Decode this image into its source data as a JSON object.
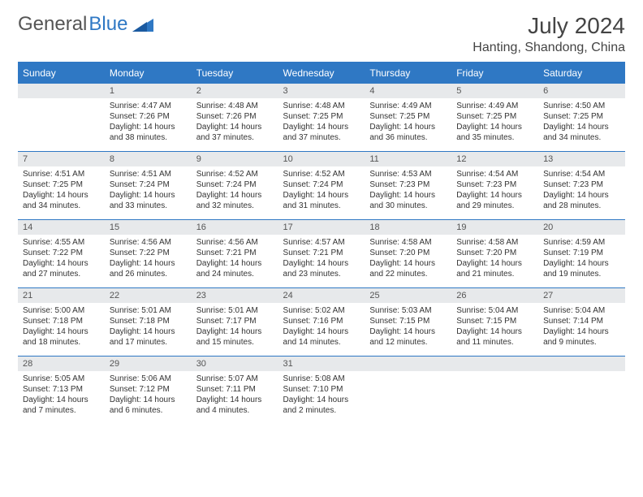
{
  "logo": {
    "text1": "General",
    "text2": "Blue"
  },
  "title": "July 2024",
  "location": "Hanting, Shandong, China",
  "colors": {
    "accent": "#2f78c4",
    "header_bg": "#e7e9eb",
    "text": "#333333",
    "bg": "#ffffff"
  },
  "weekdays": [
    "Sunday",
    "Monday",
    "Tuesday",
    "Wednesday",
    "Thursday",
    "Friday",
    "Saturday"
  ],
  "weeks": [
    [
      null,
      {
        "n": "1",
        "sr": "Sunrise: 4:47 AM",
        "ss": "Sunset: 7:26 PM",
        "dl": "Daylight: 14 hours and 38 minutes."
      },
      {
        "n": "2",
        "sr": "Sunrise: 4:48 AM",
        "ss": "Sunset: 7:26 PM",
        "dl": "Daylight: 14 hours and 37 minutes."
      },
      {
        "n": "3",
        "sr": "Sunrise: 4:48 AM",
        "ss": "Sunset: 7:25 PM",
        "dl": "Daylight: 14 hours and 37 minutes."
      },
      {
        "n": "4",
        "sr": "Sunrise: 4:49 AM",
        "ss": "Sunset: 7:25 PM",
        "dl": "Daylight: 14 hours and 36 minutes."
      },
      {
        "n": "5",
        "sr": "Sunrise: 4:49 AM",
        "ss": "Sunset: 7:25 PM",
        "dl": "Daylight: 14 hours and 35 minutes."
      },
      {
        "n": "6",
        "sr": "Sunrise: 4:50 AM",
        "ss": "Sunset: 7:25 PM",
        "dl": "Daylight: 14 hours and 34 minutes."
      }
    ],
    [
      {
        "n": "7",
        "sr": "Sunrise: 4:51 AM",
        "ss": "Sunset: 7:25 PM",
        "dl": "Daylight: 14 hours and 34 minutes."
      },
      {
        "n": "8",
        "sr": "Sunrise: 4:51 AM",
        "ss": "Sunset: 7:24 PM",
        "dl": "Daylight: 14 hours and 33 minutes."
      },
      {
        "n": "9",
        "sr": "Sunrise: 4:52 AM",
        "ss": "Sunset: 7:24 PM",
        "dl": "Daylight: 14 hours and 32 minutes."
      },
      {
        "n": "10",
        "sr": "Sunrise: 4:52 AM",
        "ss": "Sunset: 7:24 PM",
        "dl": "Daylight: 14 hours and 31 minutes."
      },
      {
        "n": "11",
        "sr": "Sunrise: 4:53 AM",
        "ss": "Sunset: 7:23 PM",
        "dl": "Daylight: 14 hours and 30 minutes."
      },
      {
        "n": "12",
        "sr": "Sunrise: 4:54 AM",
        "ss": "Sunset: 7:23 PM",
        "dl": "Daylight: 14 hours and 29 minutes."
      },
      {
        "n": "13",
        "sr": "Sunrise: 4:54 AM",
        "ss": "Sunset: 7:23 PM",
        "dl": "Daylight: 14 hours and 28 minutes."
      }
    ],
    [
      {
        "n": "14",
        "sr": "Sunrise: 4:55 AM",
        "ss": "Sunset: 7:22 PM",
        "dl": "Daylight: 14 hours and 27 minutes."
      },
      {
        "n": "15",
        "sr": "Sunrise: 4:56 AM",
        "ss": "Sunset: 7:22 PM",
        "dl": "Daylight: 14 hours and 26 minutes."
      },
      {
        "n": "16",
        "sr": "Sunrise: 4:56 AM",
        "ss": "Sunset: 7:21 PM",
        "dl": "Daylight: 14 hours and 24 minutes."
      },
      {
        "n": "17",
        "sr": "Sunrise: 4:57 AM",
        "ss": "Sunset: 7:21 PM",
        "dl": "Daylight: 14 hours and 23 minutes."
      },
      {
        "n": "18",
        "sr": "Sunrise: 4:58 AM",
        "ss": "Sunset: 7:20 PM",
        "dl": "Daylight: 14 hours and 22 minutes."
      },
      {
        "n": "19",
        "sr": "Sunrise: 4:58 AM",
        "ss": "Sunset: 7:20 PM",
        "dl": "Daylight: 14 hours and 21 minutes."
      },
      {
        "n": "20",
        "sr": "Sunrise: 4:59 AM",
        "ss": "Sunset: 7:19 PM",
        "dl": "Daylight: 14 hours and 19 minutes."
      }
    ],
    [
      {
        "n": "21",
        "sr": "Sunrise: 5:00 AM",
        "ss": "Sunset: 7:18 PM",
        "dl": "Daylight: 14 hours and 18 minutes."
      },
      {
        "n": "22",
        "sr": "Sunrise: 5:01 AM",
        "ss": "Sunset: 7:18 PM",
        "dl": "Daylight: 14 hours and 17 minutes."
      },
      {
        "n": "23",
        "sr": "Sunrise: 5:01 AM",
        "ss": "Sunset: 7:17 PM",
        "dl": "Daylight: 14 hours and 15 minutes."
      },
      {
        "n": "24",
        "sr": "Sunrise: 5:02 AM",
        "ss": "Sunset: 7:16 PM",
        "dl": "Daylight: 14 hours and 14 minutes."
      },
      {
        "n": "25",
        "sr": "Sunrise: 5:03 AM",
        "ss": "Sunset: 7:15 PM",
        "dl": "Daylight: 14 hours and 12 minutes."
      },
      {
        "n": "26",
        "sr": "Sunrise: 5:04 AM",
        "ss": "Sunset: 7:15 PM",
        "dl": "Daylight: 14 hours and 11 minutes."
      },
      {
        "n": "27",
        "sr": "Sunrise: 5:04 AM",
        "ss": "Sunset: 7:14 PM",
        "dl": "Daylight: 14 hours and 9 minutes."
      }
    ],
    [
      {
        "n": "28",
        "sr": "Sunrise: 5:05 AM",
        "ss": "Sunset: 7:13 PM",
        "dl": "Daylight: 14 hours and 7 minutes."
      },
      {
        "n": "29",
        "sr": "Sunrise: 5:06 AM",
        "ss": "Sunset: 7:12 PM",
        "dl": "Daylight: 14 hours and 6 minutes."
      },
      {
        "n": "30",
        "sr": "Sunrise: 5:07 AM",
        "ss": "Sunset: 7:11 PM",
        "dl": "Daylight: 14 hours and 4 minutes."
      },
      {
        "n": "31",
        "sr": "Sunrise: 5:08 AM",
        "ss": "Sunset: 7:10 PM",
        "dl": "Daylight: 14 hours and 2 minutes."
      },
      null,
      null,
      null
    ]
  ]
}
